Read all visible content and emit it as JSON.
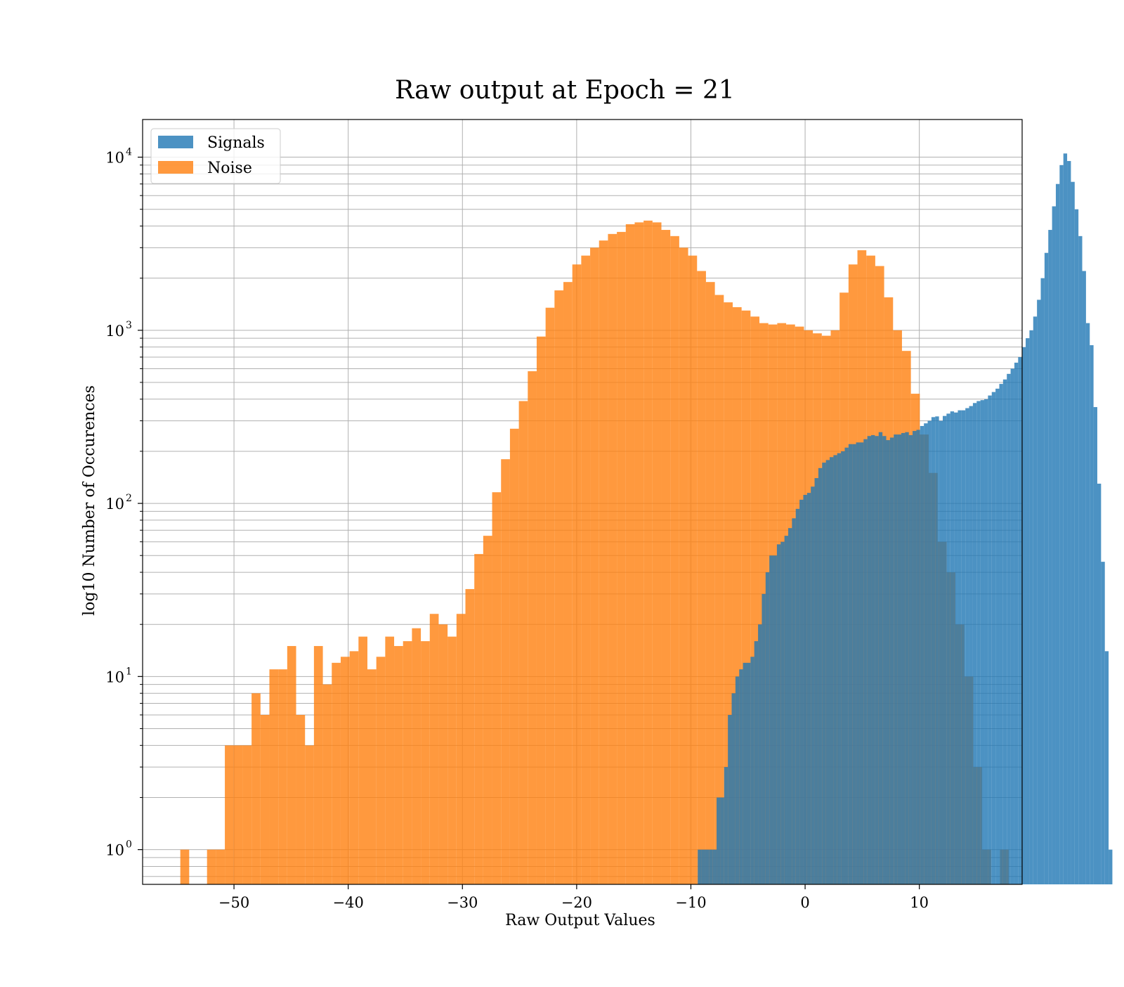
{
  "chart_data": {
    "type": "bar",
    "title": "Raw output at Epoch = 21",
    "xlabel": "Raw Output Values",
    "ylabel": "log10 Number of Occurences",
    "xlim": [
      -58,
      19
    ],
    "ylim": [
      0.63,
      16500
    ],
    "yscale": "log",
    "grid": true,
    "legend": {
      "placement": "top-left",
      "entries": [
        "Signals",
        "Noise"
      ]
    },
    "x_ticks": [
      "−50",
      "−40",
      "−30",
      "−20",
      "−10",
      "0",
      "10"
    ],
    "x_tick_values": [
      -50,
      -40,
      -30,
      -20,
      -10,
      0,
      10
    ],
    "y_tick_base": "10",
    "y_tick_exponents": [
      "0",
      "1",
      "2",
      "3",
      "4"
    ],
    "y_tick_values": [
      1,
      10,
      100,
      1000,
      10000
    ],
    "colors": {
      "signals": "#1f77b4",
      "noise": "#ff7f0e",
      "grid": "#b0b0b0"
    },
    "series": [
      {
        "name": "Signals",
        "bin_start": -9.4,
        "bin_width": 0.33,
        "values": [
          1,
          1,
          1,
          1,
          1,
          2,
          2,
          3,
          6,
          8,
          10,
          11,
          12,
          12,
          13,
          16,
          20,
          30,
          40,
          50,
          50,
          58,
          60,
          65,
          72,
          82,
          93,
          105,
          112,
          115,
          125,
          140,
          160,
          172,
          178,
          185,
          190,
          195,
          200,
          210,
          220,
          220,
          225,
          225,
          235,
          245,
          248,
          245,
          258,
          245,
          232,
          240,
          250,
          250,
          255,
          258,
          248,
          262,
          266,
          280,
          290,
          300,
          315,
          318,
          300,
          320,
          330,
          340,
          335,
          345,
          345,
          355,
          365,
          380,
          390,
          395,
          400,
          420,
          440,
          460,
          490,
          520,
          560,
          600,
          650,
          700,
          800,
          900,
          1000,
          1200,
          1500,
          2000,
          2800,
          3800,
          5200,
          7000,
          9000,
          10500,
          9500,
          7200,
          5000,
          3500,
          2200,
          1100,
          820,
          360,
          130,
          46,
          14,
          1
        ]
      },
      {
        "name": "Noise",
        "bin_start": -54.7,
        "bin_width": 0.78,
        "values": [
          1,
          0,
          0,
          1,
          1,
          4,
          4,
          4,
          8,
          6,
          11,
          11,
          15,
          6,
          4,
          15,
          9,
          12,
          13,
          14,
          17,
          11,
          13,
          17,
          15,
          16,
          19,
          16,
          23,
          20,
          17,
          23,
          32,
          51,
          65,
          116,
          180,
          270,
          390,
          580,
          920,
          1350,
          1700,
          1900,
          2400,
          2700,
          3000,
          3300,
          3600,
          3700,
          4100,
          4200,
          4300,
          4200,
          3800,
          3500,
          3000,
          2700,
          2200,
          1900,
          1600,
          1450,
          1360,
          1300,
          1200,
          1100,
          1080,
          1100,
          1080,
          1050,
          1000,
          960,
          930,
          1000,
          1650,
          2400,
          2900,
          2700,
          2350,
          1550,
          1000,
          760,
          430,
          250,
          150,
          60,
          40,
          20,
          10,
          3,
          1,
          0,
          1
        ]
      }
    ]
  }
}
